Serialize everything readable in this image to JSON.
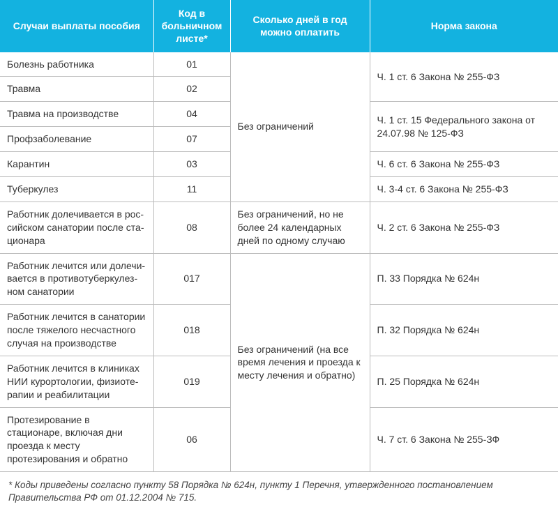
{
  "header": {
    "col1": "Случаи выплаты пособия",
    "col2": "Код в больнич­ном листе*",
    "col3": "Сколько дней в год можно оплатить",
    "col4": "Норма закона"
  },
  "rows": {
    "r1_case": "Болезнь работника",
    "r1_code": "01",
    "r2_case": "Травма",
    "r2_code": "02",
    "r3_case": "Травма на производстве",
    "r3_code": "04",
    "r4_case": "Профзаболевание",
    "r4_code": "07",
    "r5_case": "Карантин",
    "r5_code": "03",
    "r6_case": "Туберкулез",
    "r6_code": "11",
    "days_group1": "Без ограничений",
    "law_r12": "Ч. 1 ст. 6 Закона № 255-ФЗ",
    "law_r34": "Ч. 1 ст. 15 Федерального закона от 24.07.98 № 125-ФЗ",
    "law_r5": "Ч. 6 ст. 6 Закона № 255-ФЗ",
    "law_r6": "Ч. 3-4 ст. 6 Закона № 255-ФЗ",
    "r7_case": "Работник долечивается в рос­сийском санатории после ста­ционара",
    "r7_code": "08",
    "r7_days": "Без ограничений, но не более 24 кален­дарных дней по одному случаю",
    "r7_law": "Ч. 2 ст. 6 Закона № 255-ФЗ",
    "r8_case": "Работник лечится или долечи­вается в противотуберкулез­ном санатории",
    "r8_code": "017",
    "r8_law": "П. 33 Порядка № 624н",
    "r9_case": "Работник лечится в санатории после тяжелого несчастного случая на производстве",
    "r9_code": "018",
    "r9_law": "П. 32 Порядка № 624н",
    "r10_case": "Работник лечится в клиниках НИИ курортологии, физиоте­рапии и реабилитации",
    "r10_code": "019",
    "r10_law": "П. 25 Порядка № 624н",
    "r11_case": "Протезирование в стационаре, включая дни проезда к месту протезирования и обратно",
    "r11_code": "06",
    "r11_law": "Ч. 7 ст. 6 Закона № 255-ЗФ",
    "days_group2": "Без ограничений (на все время лечения и проезда к месту лечения и обратно)"
  },
  "footnote": "* Коды приведены согласно пункту 58 Порядка № 624н, пункту 1 Перечня, утвержденного постановлением Правительства РФ от 01.12.2004 № 715.",
  "colors": {
    "header_bg": "#13b2e0",
    "header_text": "#ffffff",
    "border": "#bbbbbb",
    "text": "#333333"
  }
}
